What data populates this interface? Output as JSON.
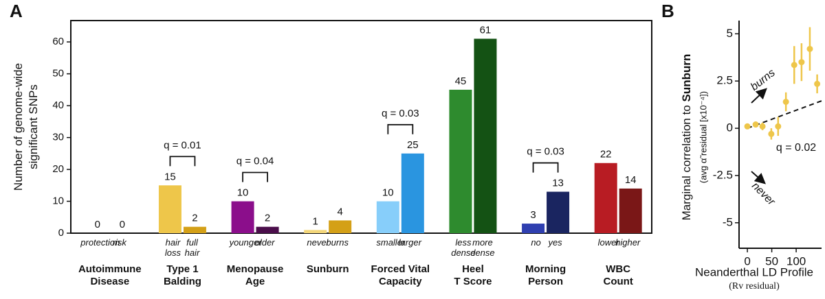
{
  "chart_data": [
    {
      "type": "bar",
      "panel": "A",
      "ylabel": [
        "Number of genome-wide",
        "significant SNPs"
      ],
      "categories": [
        [
          "protection"
        ],
        [
          "risk"
        ],
        [
          "hair",
          "loss"
        ],
        [
          "full",
          "hair"
        ],
        [
          "younger"
        ],
        [
          "older"
        ],
        [
          "never"
        ],
        [
          "burns"
        ],
        [
          "smaller"
        ],
        [
          "larger"
        ],
        [
          "less",
          "dense"
        ],
        [
          "more",
          "dense"
        ],
        [
          "no"
        ],
        [
          "yes"
        ],
        [
          "lower"
        ],
        [
          "higher"
        ]
      ],
      "values": [
        0,
        0,
        15,
        2,
        10,
        2,
        1,
        4,
        10,
        25,
        45,
        61,
        3,
        13,
        22,
        14
      ],
      "colors": [
        "#e7a3c0",
        "#c2185b",
        "#eec64a",
        "#d4a017",
        "#8b0e8b",
        "#4b0e4b",
        "#f3d679",
        "#d4a017",
        "#87cefa",
        "#2a95e0",
        "#2e8b2e",
        "#145214",
        "#2f3fb0",
        "#1a2560",
        "#b81c23",
        "#7a1717"
      ],
      "groups": [
        {
          "name": [
            "Autoimmune",
            "Disease"
          ]
        },
        {
          "name": [
            "Type 1",
            "Balding"
          ],
          "q": "q = 0.01"
        },
        {
          "name": [
            "Menopause",
            "Age"
          ],
          "q": "q = 0.04"
        },
        {
          "name": [
            "Sunburn"
          ]
        },
        {
          "name": [
            "Forced Vital",
            "Capacity"
          ],
          "q": "q = 0.03"
        },
        {
          "name": [
            "Heel",
            "T Score"
          ]
        },
        {
          "name": [
            "Morning",
            "Person"
          ],
          "q": "q = 0.03"
        },
        {
          "name": [
            "WBC",
            "Count"
          ]
        }
      ],
      "ylim": [
        0,
        66.7
      ],
      "yticks": [
        0,
        10,
        20,
        30,
        40,
        50,
        60
      ]
    },
    {
      "type": "scatter",
      "panel": "B",
      "ylabel": [
        "Marginal correlation to ",
        "Sunburn"
      ],
      "ylabel_sub": "(avg α̃ residual [x10⁻⁴])",
      "xlabel": "Neanderthal LD Profile",
      "xlabel_sub": "(Rv residual)",
      "color": "#eec64a",
      "x": [
        0,
        17,
        31,
        49,
        63,
        79,
        96,
        111,
        128,
        143
      ],
      "y": [
        0.1,
        0.2,
        0.1,
        -0.3,
        0.1,
        1.4,
        3.35,
        3.5,
        4.2,
        2.35
      ],
      "errors": [
        0.1,
        0.15,
        0.2,
        0.3,
        0.5,
        0.5,
        1.0,
        1.0,
        1.15,
        0.5
      ],
      "fit": {
        "x": [
          0,
          152
        ],
        "y": [
          0,
          1.45
        ]
      },
      "annotation": "q = 0.02",
      "up_label": "burns",
      "down_label": "never",
      "xlim": [
        -17,
        152
      ],
      "xticks": [
        0,
        50,
        100
      ],
      "ylim": [
        -6.35,
        5.7
      ],
      "yticks": [
        -5,
        -2.5,
        0,
        2.5,
        5
      ]
    }
  ]
}
